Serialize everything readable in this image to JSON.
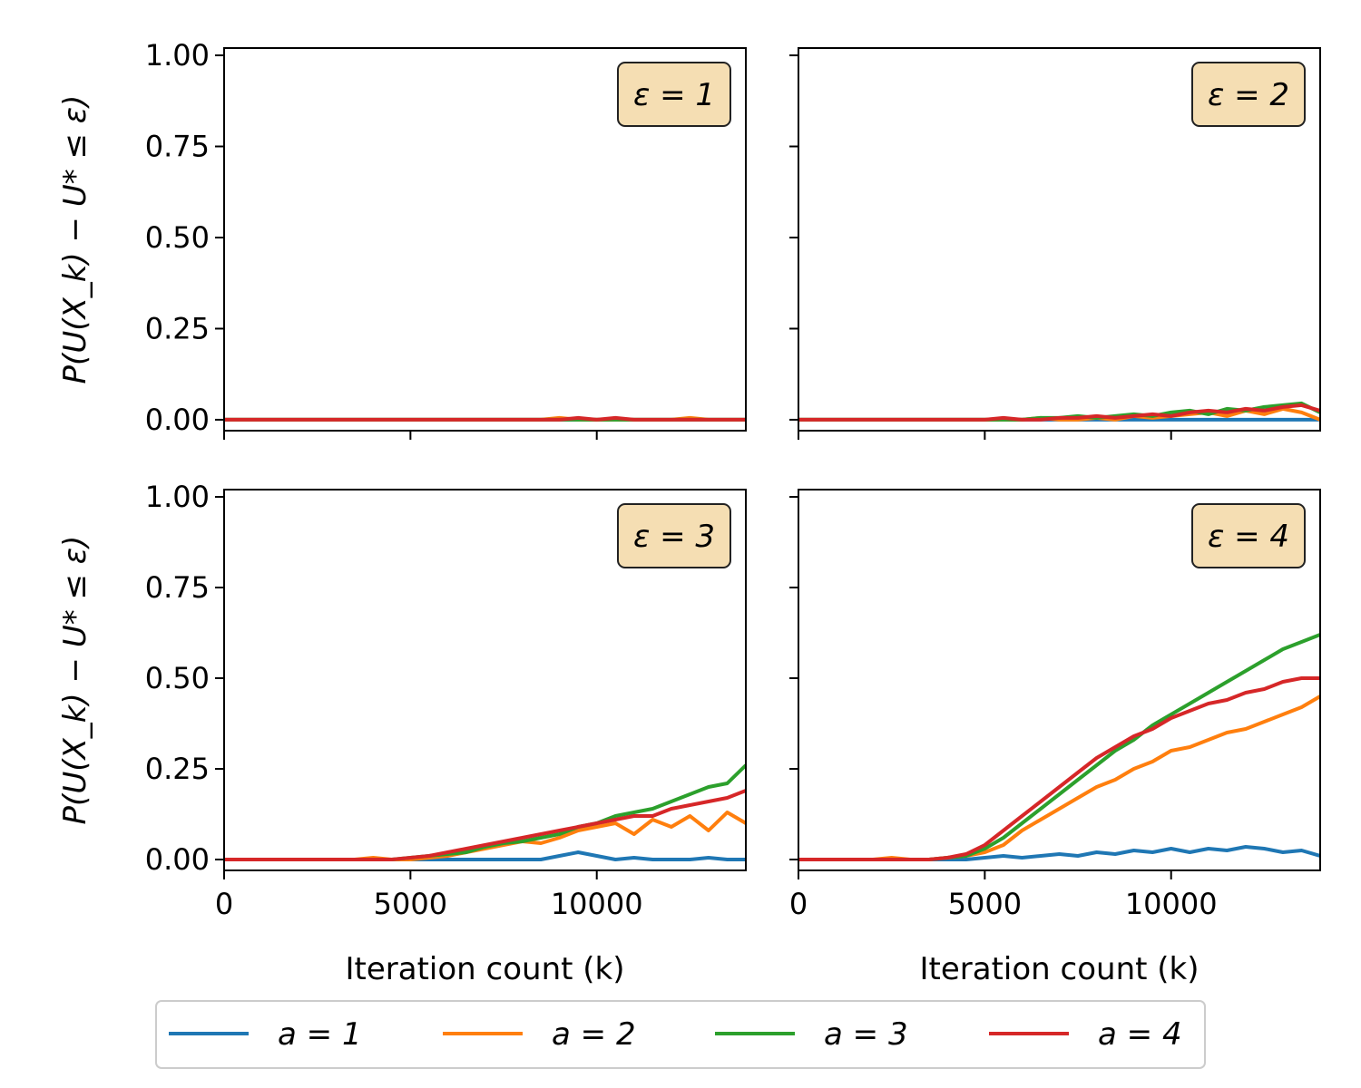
{
  "figure": {
    "xlabel": "Iteration count (k)",
    "ylabel": "P(U(X_k) − U* ≤ ε)"
  },
  "colors": {
    "a=1": "#1f77b4",
    "a=2": "#ff7f0e",
    "a=3": "#2ca02c",
    "a=4": "#d62728",
    "badge_fill": "#f5deb3"
  },
  "legend": [
    "a = 1",
    "a = 2",
    "a = 3",
    "a = 4"
  ],
  "chart_data": [
    {
      "type": "line",
      "panel": "ε = 1",
      "xlim": [
        0,
        14000
      ],
      "ylim": [
        0,
        1
      ],
      "xticks": [
        0,
        5000,
        10000
      ],
      "yticks": [
        0.0,
        0.25,
        0.5,
        0.75,
        1.0
      ],
      "x": [
        0,
        500,
        1000,
        1500,
        2000,
        2500,
        3000,
        3500,
        4000,
        4500,
        5000,
        5500,
        6000,
        6500,
        7000,
        7500,
        8000,
        8500,
        9000,
        9500,
        10000,
        10500,
        11000,
        11500,
        12000,
        12500,
        13000,
        13500,
        14000
      ],
      "series": [
        {
          "name": "a = 1",
          "values": [
            0,
            0,
            0,
            0,
            0,
            0,
            0,
            0,
            0,
            0,
            0,
            0,
            0,
            0,
            0,
            0,
            0,
            0,
            0,
            0,
            0,
            0,
            0,
            0,
            0,
            0,
            0,
            0,
            0
          ]
        },
        {
          "name": "a = 2",
          "values": [
            0,
            0,
            0,
            0,
            0,
            0,
            0,
            0,
            0,
            0,
            0,
            0,
            0,
            0,
            0,
            0,
            0,
            0,
            0.005,
            0,
            0,
            0,
            0,
            0,
            0,
            0.005,
            0,
            0,
            0
          ]
        },
        {
          "name": "a = 3",
          "values": [
            0,
            0,
            0,
            0,
            0,
            0,
            0,
            0,
            0,
            0,
            0,
            0,
            0,
            0,
            0,
            0,
            0,
            0,
            0,
            0,
            0,
            0,
            0,
            0,
            0,
            0,
            0,
            0,
            0
          ]
        },
        {
          "name": "a = 4",
          "values": [
            0,
            0,
            0,
            0,
            0,
            0,
            0,
            0,
            0,
            0,
            0,
            0,
            0,
            0,
            0,
            0,
            0,
            0,
            0,
            0.005,
            0,
            0.005,
            0,
            0,
            0,
            0,
            0,
            0,
            0
          ]
        }
      ]
    },
    {
      "type": "line",
      "panel": "ε = 2",
      "xlim": [
        0,
        14000
      ],
      "ylim": [
        0,
        1
      ],
      "xticks": [
        0,
        5000,
        10000
      ],
      "yticks": [
        0.0,
        0.25,
        0.5,
        0.75,
        1.0
      ],
      "x": [
        0,
        500,
        1000,
        1500,
        2000,
        2500,
        3000,
        3500,
        4000,
        4500,
        5000,
        5500,
        6000,
        6500,
        7000,
        7500,
        8000,
        8500,
        9000,
        9500,
        10000,
        10500,
        11000,
        11500,
        12000,
        12500,
        13000,
        13500,
        14000
      ],
      "series": [
        {
          "name": "a = 1",
          "values": [
            0,
            0,
            0,
            0,
            0,
            0,
            0,
            0,
            0,
            0,
            0,
            0,
            0,
            0,
            0,
            0,
            0,
            0,
            0,
            0,
            0,
            0,
            0,
            0,
            0,
            0,
            0,
            0,
            0
          ]
        },
        {
          "name": "a = 2",
          "values": [
            0,
            0,
            0,
            0,
            0,
            0,
            0,
            0,
            0,
            0,
            0,
            0,
            0,
            0.005,
            0,
            0,
            0.005,
            0,
            0.01,
            0.005,
            0.01,
            0.015,
            0.02,
            0.01,
            0.025,
            0.015,
            0.03,
            0.02,
            0
          ]
        },
        {
          "name": "a = 3",
          "values": [
            0,
            0,
            0,
            0,
            0,
            0,
            0,
            0,
            0,
            0,
            0,
            0,
            0,
            0.005,
            0.005,
            0.01,
            0.005,
            0.01,
            0.015,
            0.01,
            0.02,
            0.025,
            0.015,
            0.03,
            0.025,
            0.035,
            0.04,
            0.045,
            0.02
          ]
        },
        {
          "name": "a = 4",
          "values": [
            0,
            0,
            0,
            0,
            0,
            0,
            0,
            0,
            0,
            0,
            0,
            0.005,
            0,
            0,
            0.005,
            0.005,
            0.01,
            0.005,
            0.01,
            0.015,
            0.01,
            0.02,
            0.025,
            0.02,
            0.03,
            0.025,
            0.035,
            0.04,
            0.025
          ]
        }
      ]
    },
    {
      "type": "line",
      "panel": "ε = 3",
      "xlim": [
        0,
        14000
      ],
      "ylim": [
        0,
        1
      ],
      "xticks": [
        0,
        5000,
        10000
      ],
      "yticks": [
        0.0,
        0.25,
        0.5,
        0.75,
        1.0
      ],
      "x": [
        0,
        500,
        1000,
        1500,
        2000,
        2500,
        3000,
        3500,
        4000,
        4500,
        5000,
        5500,
        6000,
        6500,
        7000,
        7500,
        8000,
        8500,
        9000,
        9500,
        10000,
        10500,
        11000,
        11500,
        12000,
        12500,
        13000,
        13500,
        14000
      ],
      "series": [
        {
          "name": "a = 1",
          "values": [
            0,
            0,
            0,
            0,
            0,
            0,
            0,
            0,
            0,
            0,
            0,
            0,
            0,
            0,
            0,
            0,
            0,
            0,
            0.01,
            0.02,
            0.01,
            0,
            0.005,
            0,
            0,
            0,
            0.005,
            0,
            0
          ]
        },
        {
          "name": "a = 2",
          "values": [
            0,
            0,
            0,
            0,
            0,
            0,
            0,
            0,
            0.005,
            0,
            0,
            0.005,
            0.01,
            0.02,
            0.03,
            0.04,
            0.05,
            0.045,
            0.06,
            0.08,
            0.09,
            0.1,
            0.07,
            0.11,
            0.09,
            0.12,
            0.08,
            0.13,
            0.1
          ]
        },
        {
          "name": "a = 3",
          "values": [
            0,
            0,
            0,
            0,
            0,
            0,
            0,
            0,
            0,
            0,
            0.005,
            0.01,
            0.015,
            0.02,
            0.035,
            0.045,
            0.05,
            0.06,
            0.07,
            0.09,
            0.1,
            0.12,
            0.13,
            0.14,
            0.16,
            0.18,
            0.2,
            0.21,
            0.26
          ]
        },
        {
          "name": "a = 4",
          "values": [
            0,
            0,
            0,
            0,
            0,
            0,
            0,
            0,
            0,
            0,
            0.005,
            0.01,
            0.02,
            0.03,
            0.04,
            0.05,
            0.06,
            0.07,
            0.08,
            0.09,
            0.1,
            0.11,
            0.12,
            0.12,
            0.14,
            0.15,
            0.16,
            0.17,
            0.19
          ]
        }
      ]
    },
    {
      "type": "line",
      "panel": "ε = 4",
      "xlim": [
        0,
        14000
      ],
      "ylim": [
        0,
        1
      ],
      "xticks": [
        0,
        5000,
        10000
      ],
      "yticks": [
        0.0,
        0.25,
        0.5,
        0.75,
        1.0
      ],
      "x": [
        0,
        500,
        1000,
        1500,
        2000,
        2500,
        3000,
        3500,
        4000,
        4500,
        5000,
        5500,
        6000,
        6500,
        7000,
        7500,
        8000,
        8500,
        9000,
        9500,
        10000,
        10500,
        11000,
        11500,
        12000,
        12500,
        13000,
        13500,
        14000
      ],
      "series": [
        {
          "name": "a = 1",
          "values": [
            0,
            0,
            0,
            0,
            0,
            0,
            0,
            0,
            0,
            0,
            0.005,
            0.01,
            0.005,
            0.01,
            0.015,
            0.01,
            0.02,
            0.015,
            0.025,
            0.02,
            0.03,
            0.02,
            0.03,
            0.025,
            0.035,
            0.03,
            0.02,
            0.025,
            0.01
          ]
        },
        {
          "name": "a = 2",
          "values": [
            0,
            0,
            0,
            0,
            0,
            0.005,
            0,
            0,
            0.005,
            0.01,
            0.02,
            0.04,
            0.08,
            0.11,
            0.14,
            0.17,
            0.2,
            0.22,
            0.25,
            0.27,
            0.3,
            0.31,
            0.33,
            0.35,
            0.36,
            0.38,
            0.4,
            0.42,
            0.45
          ]
        },
        {
          "name": "a = 3",
          "values": [
            0,
            0,
            0,
            0,
            0,
            0,
            0,
            0,
            0.005,
            0.01,
            0.03,
            0.06,
            0.1,
            0.14,
            0.18,
            0.22,
            0.26,
            0.3,
            0.33,
            0.37,
            0.4,
            0.43,
            0.46,
            0.49,
            0.52,
            0.55,
            0.58,
            0.6,
            0.62
          ]
        },
        {
          "name": "a = 4",
          "values": [
            0,
            0,
            0,
            0,
            0,
            0,
            0,
            0,
            0.005,
            0.015,
            0.04,
            0.08,
            0.12,
            0.16,
            0.2,
            0.24,
            0.28,
            0.31,
            0.34,
            0.36,
            0.39,
            0.41,
            0.43,
            0.44,
            0.46,
            0.47,
            0.49,
            0.5,
            0.5
          ]
        }
      ]
    }
  ]
}
